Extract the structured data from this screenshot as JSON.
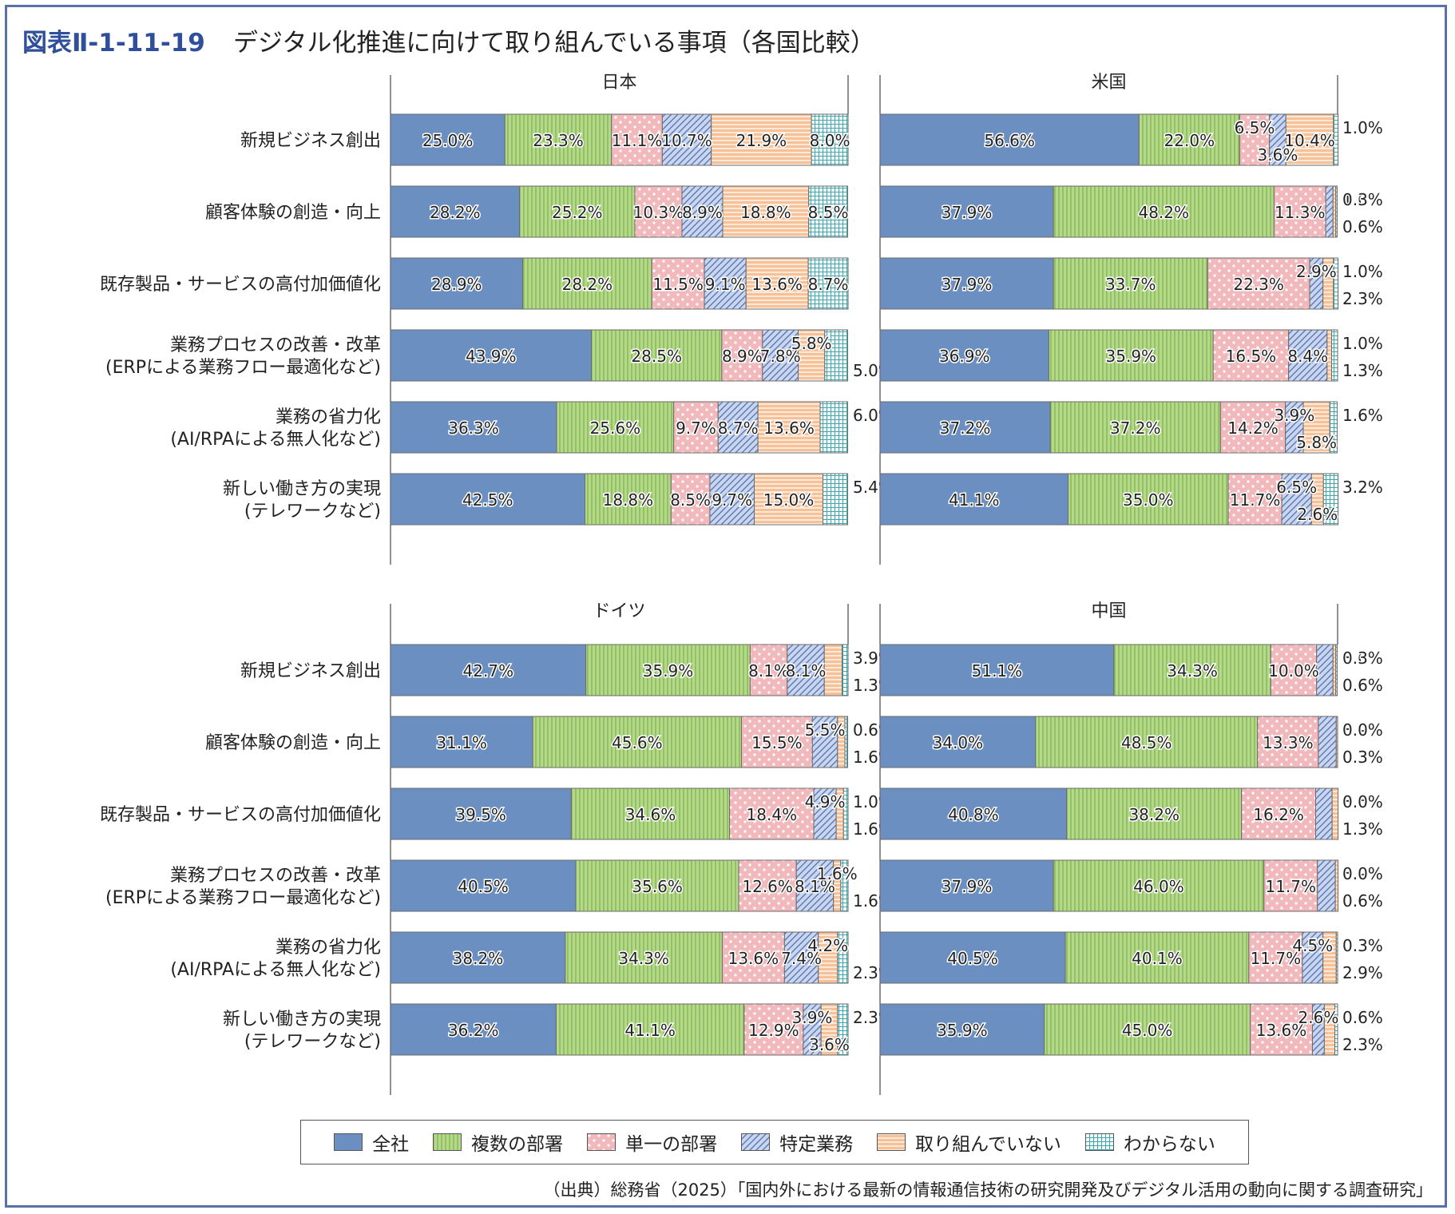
{
  "figure": {
    "label": "図表Ⅱ-1-11-19",
    "title": "デジタル化推進に向けて取り組んでいる事項（各国比較）",
    "source": "（出典）総務省（2025）「国内外における最新の情報通信技術の研究開発及びデジタル活用の動向に関する調査研究」"
  },
  "chart_data": {
    "type": "bar",
    "stacked": true,
    "orientation": "horizontal",
    "unit": "%",
    "xlim": [
      0,
      100
    ],
    "categories": [
      "新規ビジネス創出",
      "顧客体験の創造・向上",
      "既存製品・サービスの高付加価値化",
      "業務プロセスの改善・改革\n(ERPによる業務フロー最適化など)",
      "業務の省力化\n(AI/RPAによる無人化など)",
      "新しい働き方の実現\n(テレワークなど)"
    ],
    "legend": {
      "placement": "bottom",
      "entries": [
        {
          "name": "全社",
          "color": "#6a8fc0",
          "pattern": "solid"
        },
        {
          "name": "複数の部署",
          "color": "#b5d98a",
          "pattern": "vertical-lines"
        },
        {
          "name": "単一の部署",
          "color": "#f2b9bd",
          "pattern": "dots"
        },
        {
          "name": "特定業務",
          "color": "#b8c8e6",
          "pattern": "diagonal"
        },
        {
          "name": "取り組んでいない",
          "color": "#f6c196",
          "pattern": "horizontal-lines"
        },
        {
          "name": "わからない",
          "color": "#b9e2e4",
          "pattern": "grid"
        }
      ]
    },
    "panels": [
      {
        "name": "日本",
        "rows": [
          [
            25.0,
            23.3,
            11.1,
            10.7,
            21.9,
            8.0
          ],
          [
            28.2,
            25.2,
            10.3,
            8.9,
            18.8,
            8.5
          ],
          [
            28.9,
            28.2,
            11.5,
            9.1,
            13.6,
            8.7
          ],
          [
            43.9,
            28.5,
            8.9,
            7.8,
            5.8,
            5.0
          ],
          [
            36.3,
            25.6,
            9.7,
            8.7,
            13.6,
            6.0
          ],
          [
            42.5,
            18.8,
            8.5,
            9.7,
            15.0,
            5.4
          ]
        ]
      },
      {
        "name": "米国",
        "rows": [
          [
            56.6,
            22.0,
            6.5,
            3.6,
            10.4,
            1.0
          ],
          [
            37.9,
            48.2,
            11.3,
            1.6,
            0.6,
            0.3
          ],
          [
            37.9,
            33.7,
            22.3,
            2.9,
            2.3,
            1.0
          ],
          [
            36.9,
            35.9,
            16.5,
            8.4,
            1.0,
            1.3
          ],
          [
            37.2,
            37.2,
            14.2,
            3.9,
            5.8,
            1.6
          ],
          [
            41.1,
            35.0,
            11.7,
            6.5,
            2.6,
            3.2
          ]
        ]
      },
      {
        "name": "ドイツ",
        "rows": [
          [
            42.7,
            35.9,
            8.1,
            8.1,
            3.9,
            1.3
          ],
          [
            31.1,
            45.6,
            15.5,
            5.5,
            1.6,
            0.6
          ],
          [
            39.5,
            34.6,
            18.4,
            4.9,
            1.6,
            1.0
          ],
          [
            40.5,
            35.6,
            12.6,
            8.1,
            1.6,
            1.6
          ],
          [
            38.2,
            34.3,
            13.6,
            7.4,
            4.2,
            2.3
          ],
          [
            36.2,
            41.1,
            12.9,
            3.9,
            3.6,
            2.3
          ]
        ]
      },
      {
        "name": "中国",
        "rows": [
          [
            51.1,
            34.3,
            10.0,
            3.6,
            0.6,
            0.3
          ],
          [
            34.0,
            48.5,
            13.3,
            3.9,
            0.3,
            0.0
          ],
          [
            40.8,
            38.2,
            16.2,
            3.6,
            1.3,
            0.0
          ],
          [
            37.9,
            46.0,
            11.7,
            3.9,
            0.6,
            0.0
          ],
          [
            40.5,
            40.1,
            11.7,
            4.5,
            2.9,
            0.3
          ],
          [
            35.9,
            45.0,
            13.6,
            2.6,
            2.3,
            0.6
          ]
        ]
      }
    ]
  }
}
